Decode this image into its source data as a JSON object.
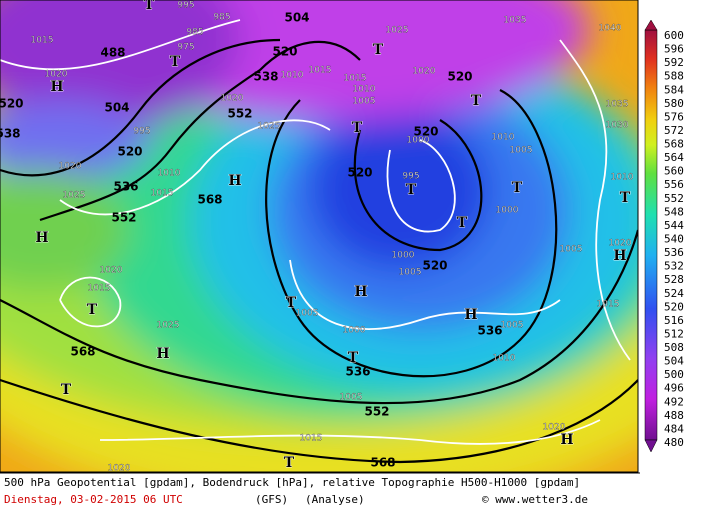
{
  "footer": {
    "caption": "500 hPa Geopotential [gpdam], Bodendruck [hPa], relative Topographie H500-H1000 [gpdam]",
    "date": "Dienstag, 03-02-2015  06 UTC",
    "model": "(GFS)",
    "run": "(Analyse)",
    "source": "© www.wetter3.de"
  },
  "colorbar": {
    "labels": [
      600,
      596,
      592,
      588,
      584,
      580,
      576,
      572,
      568,
      564,
      560,
      556,
      552,
      548,
      544,
      540,
      536,
      532,
      528,
      524,
      520,
      516,
      512,
      508,
      504,
      500,
      496,
      492,
      488,
      484,
      480
    ]
  },
  "map_labels": [
    "488",
    "504",
    "520",
    "536",
    "552",
    "568",
    "568",
    "552",
    "538",
    "520",
    "504",
    "520",
    "520",
    "520",
    "520",
    "536",
    "536",
    "552",
    "568",
    "520",
    "538",
    "995",
    "985",
    "1015",
    "1020",
    "985",
    "975",
    "1015",
    "1010",
    "1015",
    "1010",
    "1005",
    "1025",
    "1020",
    "1025",
    "1020",
    "995",
    "1020",
    "1025",
    "1015",
    "1010",
    "1000",
    "995",
    "1000",
    "1005",
    "1010",
    "1005",
    "1000",
    "1005",
    "1015",
    "1020",
    "1010",
    "1030",
    "1035",
    "1040",
    "1035",
    "1020",
    "1015",
    "1025",
    "1005",
    "1005",
    "1000",
    "1010",
    "1005",
    "1015",
    "1020",
    "1020",
    "H",
    "H",
    "H",
    "H",
    "H",
    "H",
    "H",
    "H",
    "T",
    "T",
    "T",
    "T",
    "T",
    "T",
    "T",
    "T",
    "T",
    "T",
    "T",
    "T",
    "T",
    "T"
  ]
}
